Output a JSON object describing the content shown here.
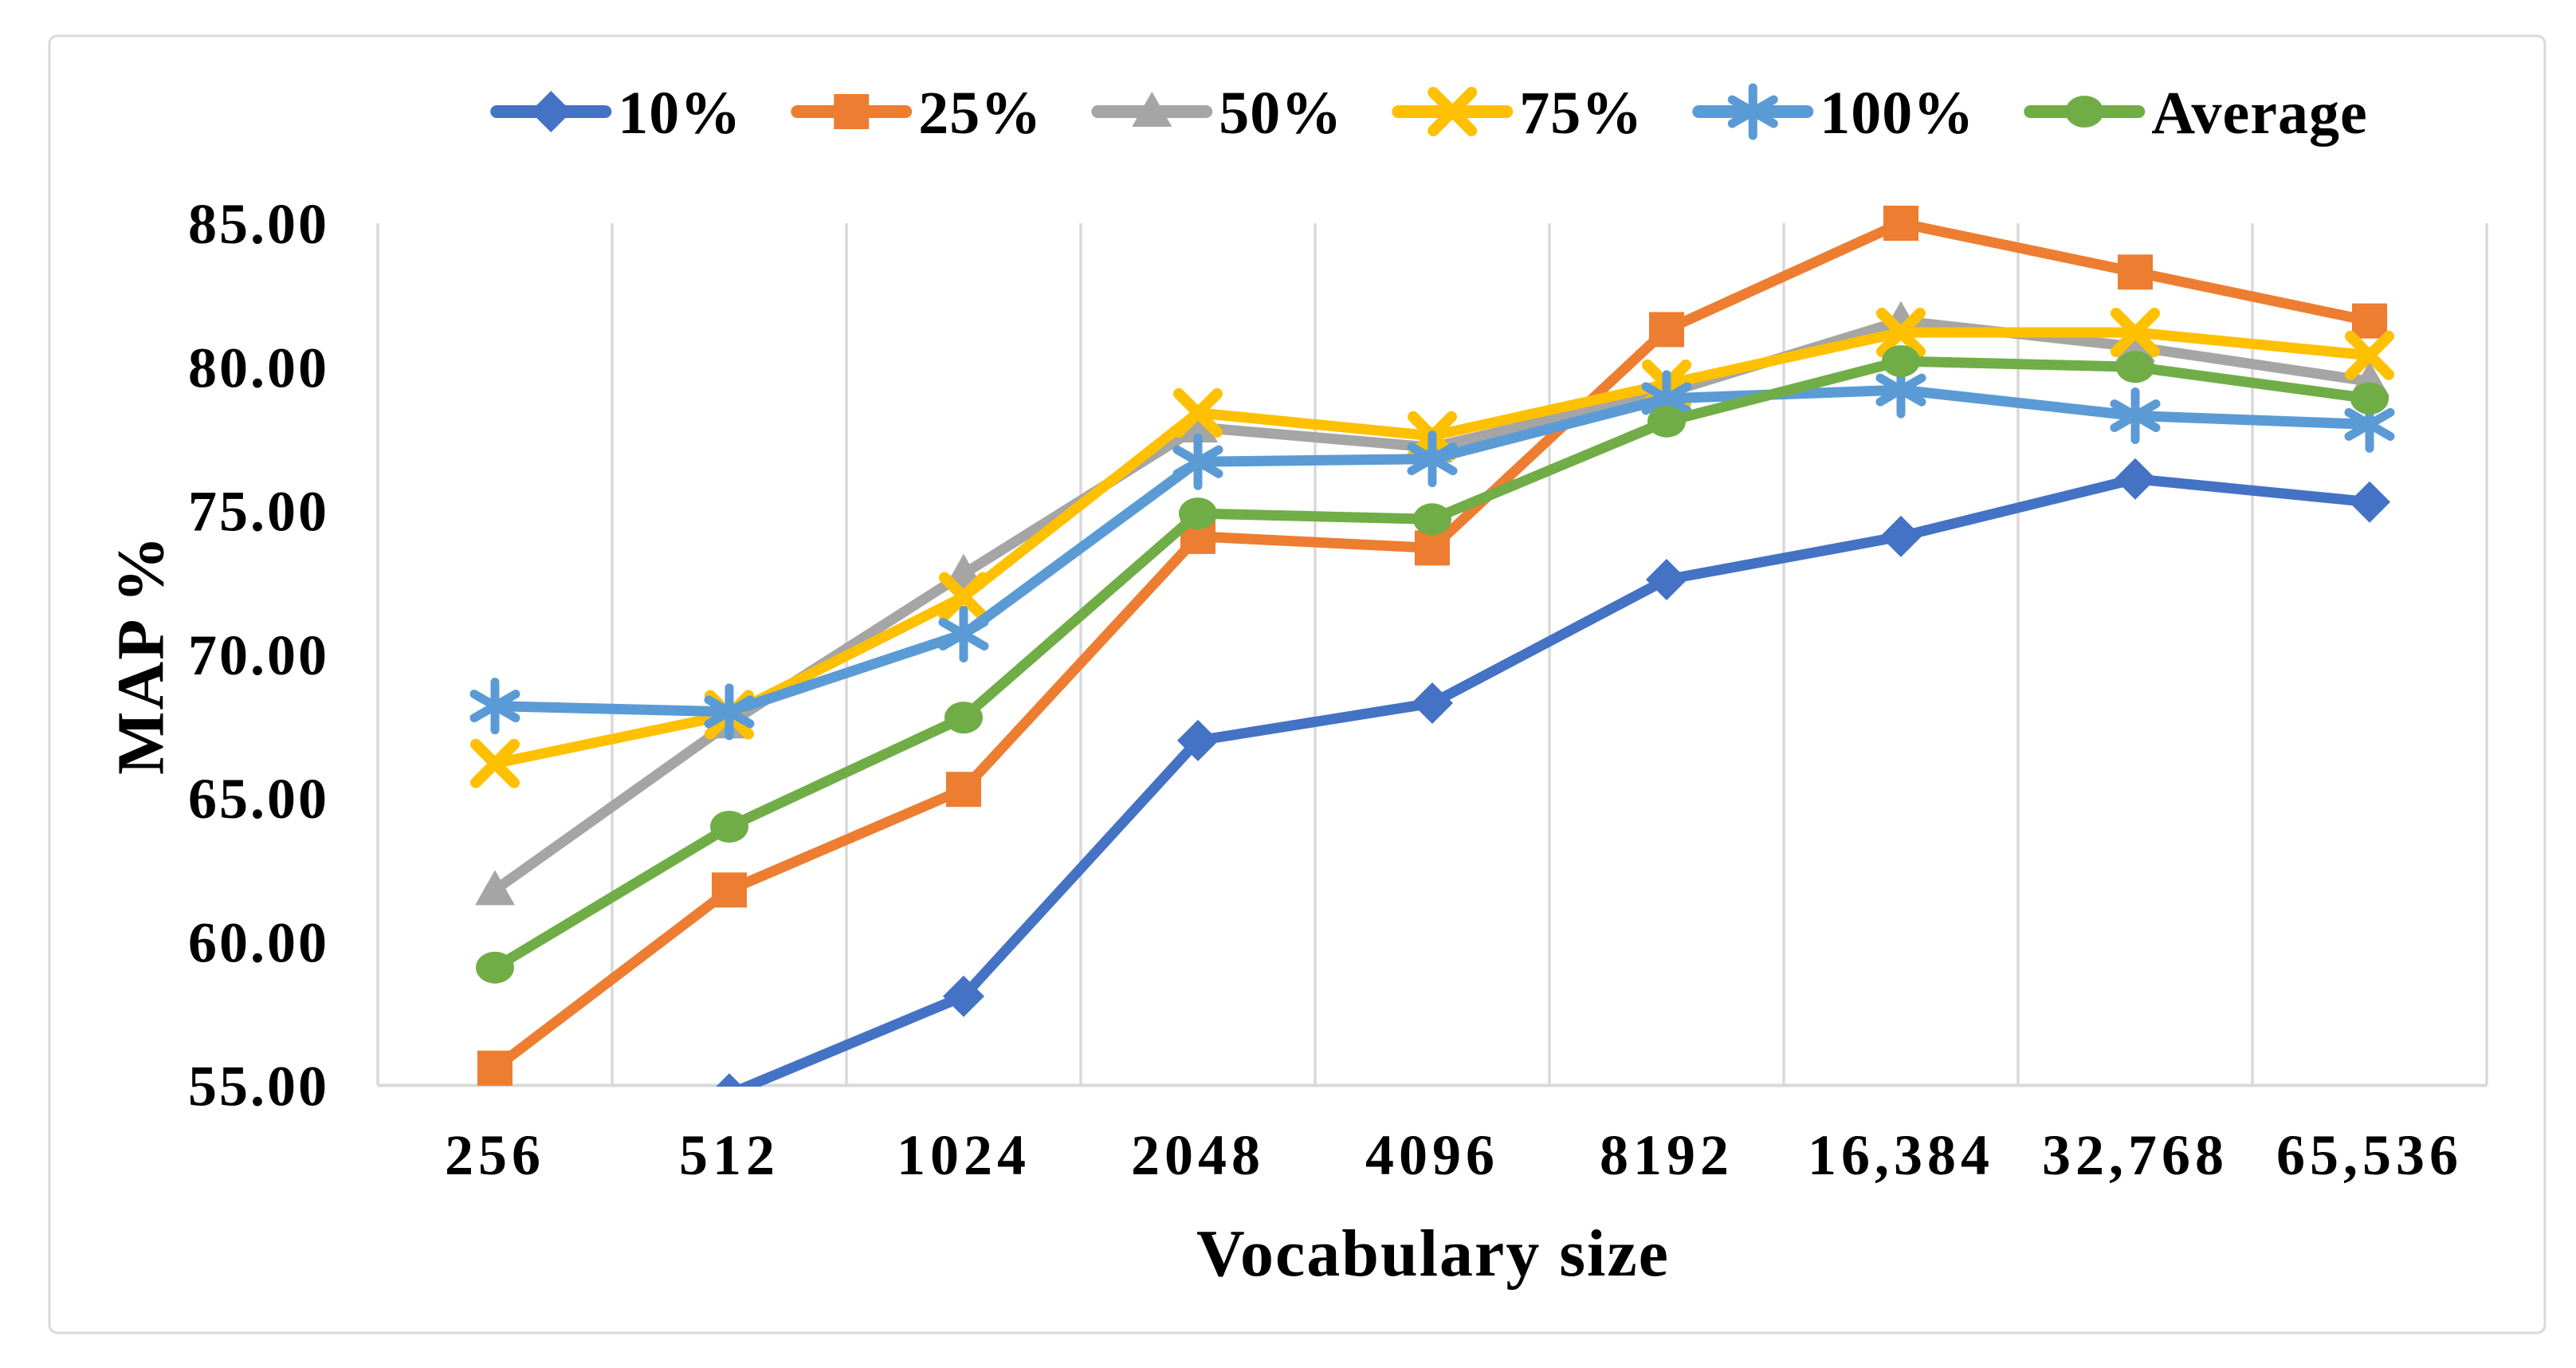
{
  "figure": {
    "background_color": "#ffffff",
    "border_color": "#D9D9D9"
  },
  "chart_data": {
    "type": "line",
    "title": "",
    "xlabel": "Vocabulary size",
    "ylabel": "MAP %",
    "categories": [
      "256",
      "512",
      "1024",
      "2048",
      "4096",
      "8192",
      "16,384",
      "32,768",
      "65,536"
    ],
    "y_axis": {
      "min": 55,
      "max": 85,
      "step": 5,
      "tick_labels": [
        "55.00",
        "60.00",
        "65.00",
        "70.00",
        "75.00",
        "80.00",
        "85.00"
      ]
    },
    "grid": "vertical-gridlines-only",
    "gridline_color": "#D9D9D9",
    "axis_line_color": "#D9D9D9",
    "legend_position": "top-center",
    "series": [
      {
        "name": "10%",
        "color": "#4472C4",
        "marker": "diamond",
        "values": [
          null,
          54.7,
          58.1,
          67.0,
          68.3,
          72.6,
          74.1,
          76.1,
          75.3
        ]
      },
      {
        "name": "25%",
        "color": "#ED7D31",
        "marker": "square",
        "values": [
          55.6,
          61.8,
          65.3,
          74.1,
          73.7,
          81.3,
          85.0,
          83.3,
          81.6
        ]
      },
      {
        "name": "50%",
        "color": "#A5A5A5",
        "marker": "triangle",
        "values": [
          61.8,
          67.6,
          72.8,
          77.9,
          77.2,
          79.1,
          81.6,
          80.7,
          79.5
        ]
      },
      {
        "name": "75%",
        "color": "#FFC000",
        "marker": "x",
        "values": [
          66.2,
          67.9,
          72.0,
          78.4,
          77.6,
          79.4,
          81.2,
          81.2,
          80.4
        ]
      },
      {
        "name": "100%",
        "color": "#5B9BD5",
        "marker": "asterisk",
        "values": [
          68.2,
          68.0,
          70.7,
          76.7,
          76.8,
          78.9,
          79.2,
          78.3,
          78.0
        ]
      },
      {
        "name": "Average",
        "color": "#70AD47",
        "marker": "circle",
        "values": [
          59.1,
          64.0,
          67.8,
          74.9,
          74.7,
          78.1,
          80.2,
          80.0,
          78.9
        ]
      }
    ]
  }
}
